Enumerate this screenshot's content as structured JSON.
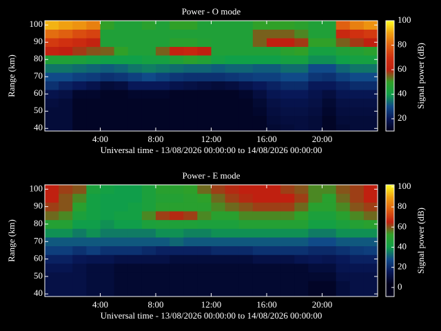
{
  "chart_data": [
    {
      "type": "heatmap",
      "title": "Power - O mode",
      "xlabel": "Universal time - 13/08/2026 00:00:00 to 14/08/2026 00:00:00",
      "ylabel": "Range (km)",
      "colorbar_label": "Signal power (dB)",
      "x": [
        0.5,
        1.5,
        2.5,
        3.5,
        4.5,
        5.5,
        6.5,
        7.5,
        8.5,
        9.5,
        10.5,
        11.5,
        12.5,
        13.5,
        14.5,
        15.5,
        16.5,
        17.5,
        18.5,
        19.5,
        20.5,
        21.5,
        22.5,
        23.5
      ],
      "y": [
        40,
        45,
        50,
        55,
        60,
        65,
        70,
        75,
        80,
        85,
        90,
        95,
        100
      ],
      "xlim": [
        0,
        24
      ],
      "ylim": [
        38.5,
        102.5
      ],
      "xticks": [
        {
          "value": 4,
          "label": "4:00"
        },
        {
          "value": 8,
          "label": "8:00"
        },
        {
          "value": 12,
          "label": "12:00"
        },
        {
          "value": 16,
          "label": "16:00"
        },
        {
          "value": 20,
          "label": "20:00"
        }
      ],
      "yticks": [
        40,
        50,
        60,
        70,
        80,
        90,
        100
      ],
      "clim": [
        10,
        100
      ],
      "cticks": [
        20,
        40,
        60,
        80,
        100
      ],
      "colors": [
        "#00001a",
        "#081858",
        "#104a88",
        "#10a048",
        "#30a028",
        "#c02010",
        "#d03010",
        "#e06010",
        "#f0a010",
        "#ffff20"
      ],
      "z": [
        [
          15,
          15,
          12,
          12,
          12,
          12,
          12,
          12,
          12,
          12,
          12,
          12,
          12,
          12,
          12,
          12,
          14,
          15,
          16,
          15,
          12,
          14,
          15,
          15
        ],
        [
          15,
          15,
          12,
          12,
          12,
          12,
          12,
          12,
          12,
          12,
          12,
          12,
          12,
          12,
          12,
          12,
          15,
          16,
          16,
          15,
          12,
          15,
          15,
          15
        ],
        [
          15,
          15,
          12,
          12,
          12,
          12,
          12,
          12,
          12,
          12,
          12,
          12,
          12,
          12,
          12,
          13,
          16,
          17,
          17,
          16,
          13,
          16,
          16,
          16
        ],
        [
          16,
          15,
          12,
          12,
          12,
          12,
          12,
          12,
          12,
          12,
          12,
          12,
          12,
          12,
          12,
          14,
          17,
          18,
          18,
          17,
          14,
          17,
          17,
          17
        ],
        [
          18,
          17,
          13,
          13,
          12,
          12,
          13,
          13,
          13,
          12,
          12,
          12,
          12,
          12,
          13,
          16,
          19,
          20,
          20,
          18,
          16,
          19,
          19,
          19
        ],
        [
          25,
          22,
          20,
          18,
          15,
          16,
          20,
          20,
          20,
          18,
          17,
          16,
          15,
          16,
          18,
          20,
          22,
          24,
          24,
          20,
          20,
          22,
          24,
          24
        ],
        [
          30,
          30,
          28,
          27,
          25,
          26,
          28,
          30,
          28,
          26,
          25,
          25,
          25,
          26,
          27,
          28,
          28,
          30,
          30,
          26,
          25,
          28,
          30,
          30
        ],
        [
          35,
          35,
          34,
          33,
          32,
          33,
          35,
          36,
          35,
          34,
          33,
          33,
          32,
          33,
          33,
          32,
          32,
          34,
          34,
          30,
          30,
          33,
          35,
          35
        ],
        [
          45,
          45,
          44,
          42,
          40,
          40,
          40,
          42,
          42,
          45,
          48,
          46,
          42,
          40,
          40,
          40,
          40,
          42,
          42,
          38,
          38,
          40,
          42,
          42
        ],
        [
          62,
          60,
          58,
          56,
          55,
          50,
          45,
          45,
          55,
          62,
          64,
          60,
          45,
          45,
          45,
          45,
          45,
          48,
          50,
          42,
          42,
          45,
          46,
          48
        ],
        [
          72,
          70,
          66,
          62,
          45,
          45,
          45,
          45,
          45,
          48,
          48,
          46,
          45,
          45,
          45,
          55,
          60,
          60,
          58,
          50,
          50,
          55,
          58,
          60
        ],
        [
          82,
          80,
          76,
          74,
          45,
          45,
          45,
          45,
          45,
          45,
          45,
          45,
          45,
          45,
          45,
          55,
          55,
          55,
          52,
          45,
          45,
          65,
          70,
          72
        ],
        [
          92,
          90,
          88,
          85,
          50,
          45,
          45,
          48,
          45,
          50,
          50,
          45,
          45,
          45,
          45,
          50,
          50,
          50,
          48,
          45,
          45,
          80,
          85,
          88
        ]
      ]
    },
    {
      "type": "heatmap",
      "title": "Power - E mode",
      "xlabel": "Universal time - 13/08/2026 00:00:00 to 14/08/2026 00:00:00",
      "ylabel": "Range (km)",
      "colorbar_label": "Signal power (dB)",
      "x": [
        0.5,
        1.5,
        2.5,
        3.5,
        4.5,
        5.5,
        6.5,
        7.5,
        8.5,
        9.5,
        10.5,
        11.5,
        12.5,
        13.5,
        14.5,
        15.5,
        16.5,
        17.5,
        18.5,
        19.5,
        20.5,
        21.5,
        22.5,
        23.5
      ],
      "y": [
        40,
        45,
        50,
        55,
        60,
        65,
        70,
        75,
        80,
        85,
        90,
        95,
        100
      ],
      "xlim": [
        0,
        24
      ],
      "ylim": [
        38.5,
        102.5
      ],
      "xticks": [
        {
          "value": 4,
          "label": "4:00"
        },
        {
          "value": 8,
          "label": "8:00"
        },
        {
          "value": 12,
          "label": "12:00"
        },
        {
          "value": 16,
          "label": "16:00"
        },
        {
          "value": 20,
          "label": "20:00"
        }
      ],
      "yticks": [
        40,
        50,
        60,
        70,
        80,
        90,
        100
      ],
      "clim": [
        -9,
        102
      ],
      "cticks": [
        0,
        20,
        40,
        60,
        80,
        100
      ],
      "colors": [
        "#00001a",
        "#00001a",
        "#081858",
        "#104a88",
        "#10a048",
        "#30a028",
        "#c02010",
        "#e06010",
        "#f0a010",
        "#ffff20"
      ],
      "z": [
        [
          12,
          12,
          12,
          10,
          10,
          8,
          8,
          8,
          8,
          8,
          8,
          8,
          8,
          8,
          8,
          8,
          8,
          8,
          8,
          6,
          6,
          10,
          12,
          12
        ],
        [
          12,
          12,
          12,
          10,
          10,
          8,
          8,
          8,
          8,
          8,
          8,
          8,
          8,
          8,
          8,
          8,
          8,
          8,
          8,
          6,
          6,
          10,
          12,
          12
        ],
        [
          12,
          12,
          12,
          10,
          10,
          8,
          8,
          8,
          8,
          8,
          8,
          8,
          8,
          8,
          8,
          8,
          8,
          8,
          8,
          8,
          8,
          12,
          12,
          12
        ],
        [
          14,
          14,
          12,
          10,
          10,
          8,
          8,
          8,
          8,
          8,
          8,
          8,
          8,
          8,
          8,
          8,
          8,
          8,
          8,
          10,
          10,
          14,
          14,
          14
        ],
        [
          18,
          18,
          15,
          14,
          14,
          12,
          12,
          12,
          12,
          10,
          10,
          10,
          10,
          10,
          10,
          12,
          12,
          12,
          14,
          15,
          14,
          16,
          18,
          18
        ],
        [
          25,
          25,
          22,
          25,
          22,
          22,
          22,
          20,
          18,
          18,
          18,
          18,
          20,
          20,
          20,
          22,
          22,
          22,
          22,
          20,
          20,
          22,
          24,
          25
        ],
        [
          30,
          30,
          30,
          30,
          30,
          30,
          30,
          30,
          30,
          32,
          30,
          30,
          30,
          30,
          30,
          30,
          30,
          30,
          30,
          28,
          28,
          30,
          30,
          30
        ],
        [
          38,
          38,
          35,
          38,
          35,
          35,
          35,
          35,
          38,
          38,
          36,
          36,
          38,
          38,
          38,
          38,
          38,
          38,
          38,
          35,
          35,
          38,
          38,
          38
        ],
        [
          48,
          48,
          40,
          40,
          38,
          40,
          40,
          45,
          46,
          46,
          46,
          45,
          45,
          45,
          48,
          48,
          48,
          48,
          48,
          42,
          42,
          45,
          48,
          50
        ],
        [
          58,
          55,
          45,
          42,
          40,
          42,
          42,
          55,
          62,
          64,
          62,
          55,
          50,
          50,
          55,
          55,
          55,
          55,
          52,
          45,
          45,
          50,
          55,
          58
        ],
        [
          62,
          60,
          50,
          42,
          40,
          40,
          42,
          45,
          50,
          50,
          50,
          50,
          55,
          58,
          60,
          62,
          62,
          62,
          58,
          50,
          50,
          55,
          60,
          62
        ],
        [
          65,
          60,
          55,
          42,
          40,
          40,
          40,
          45,
          48,
          48,
          50,
          52,
          58,
          62,
          64,
          65,
          65,
          65,
          62,
          55,
          50,
          58,
          62,
          65
        ],
        [
          65,
          62,
          60,
          45,
          42,
          40,
          40,
          45,
          50,
          50,
          52,
          58,
          62,
          64,
          65,
          65,
          65,
          62,
          60,
          55,
          55,
          60,
          62,
          65
        ]
      ]
    }
  ]
}
